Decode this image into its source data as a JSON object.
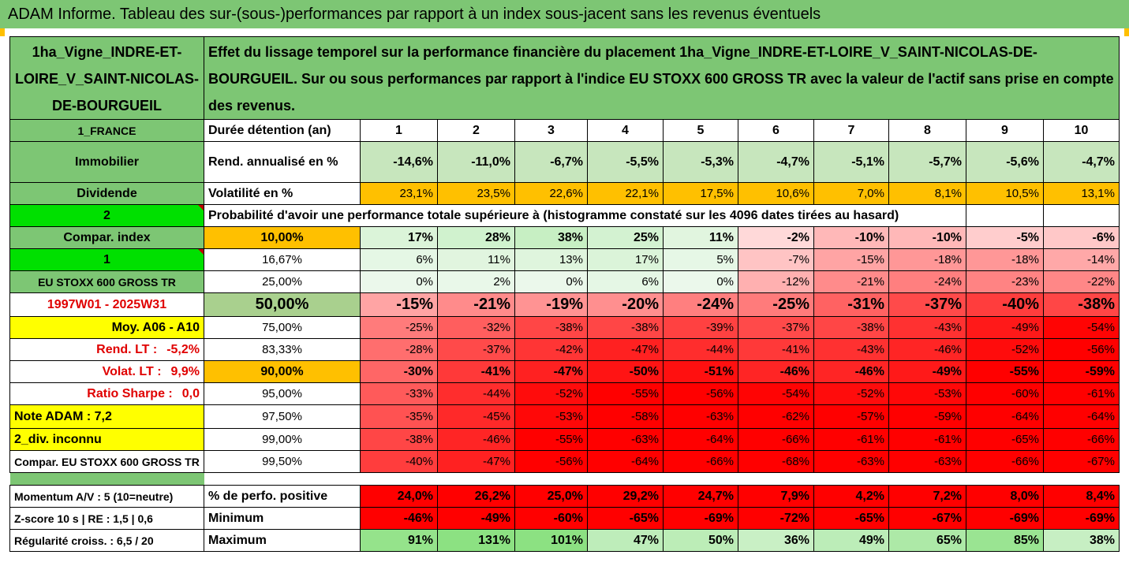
{
  "title": "ADAM Informe. Tableau des sur-(sous-)performances par rapport à un index sous-jacent sans les revenus éventuels",
  "asset_name": "1ha_Vigne_INDRE-ET-LOIRE_V_SAINT-NICOLAS-DE-BOURGUEIL",
  "description": "Effet du lissage temporel sur la performance financière du placement 1ha_Vigne_INDRE-ET-LOIRE_V_SAINT-NICOLAS-DE-BOURGUEIL. Sur ou sous performances par rapport à l'indice EU STOXX 600 GROSS TR avec la valeur de l'actif sans prise en compte des revenus.",
  "left": {
    "country": "1_FRANCE",
    "category": "Immobilier",
    "dividend": "Dividende",
    "n2": "2",
    "compar_index": "Compar. index",
    "n1": "1",
    "index_name": "EU STOXX 600 GROSS TR",
    "period": "1997W01 - 2025W31",
    "moy": "Moy. A06 - A10",
    "rend_lt_label": "Rend. LT :",
    "rend_lt_value": "-5,2%",
    "volat_lt_label": "Volat. LT :",
    "volat_lt_value": "9,9%",
    "sharpe_label": "Ratio Sharpe :",
    "sharpe_value": "0,0",
    "note": "Note ADAM : 7,2",
    "div": "2_div. inconnu",
    "compar_index2": "Compar. EU STOXX 600 GROSS TR",
    "momentum": "Momentum A/V : 5 (10=neutre)",
    "zscore": "Z-score 10 s  | RE : 1,5  | 0,6",
    "regularite": "Régularité croiss. : 6,5 / 20"
  },
  "labels": {
    "duree": "Durée détention (an)",
    "rend": "Rend. annualisé en %",
    "volat": "Volatilité en %",
    "proba": "Probabilité d'avoir une performance totale supérieure à (histogramme constaté sur les 4096 dates tirées au hasard)",
    "perf_pos": "% de perfo. positive",
    "minimum": "Minimum",
    "maximum": "Maximum"
  },
  "years": [
    "1",
    "2",
    "3",
    "4",
    "5",
    "6",
    "7",
    "8",
    "9",
    "10"
  ],
  "rend": [
    "-14,6%",
    "-11,0%",
    "-6,7%",
    "-5,5%",
    "-5,3%",
    "-4,7%",
    "-5,1%",
    "-5,7%",
    "-5,6%",
    "-4,7%"
  ],
  "volat": [
    "23,1%",
    "23,5%",
    "22,6%",
    "22,1%",
    "17,5%",
    "10,6%",
    "7,0%",
    "8,1%",
    "10,5%",
    "13,1%"
  ],
  "quantiles": [
    {
      "q": "10,00%",
      "vals": [
        "17%",
        "28%",
        "38%",
        "25%",
        "11%",
        "-2%",
        "-10%",
        "-10%",
        "-5%",
        "-6%"
      ]
    },
    {
      "q": "16,67%",
      "vals": [
        "6%",
        "11%",
        "13%",
        "17%",
        "5%",
        "-7%",
        "-15%",
        "-18%",
        "-18%",
        "-14%"
      ]
    },
    {
      "q": "25,00%",
      "vals": [
        "0%",
        "2%",
        "0%",
        "6%",
        "0%",
        "-12%",
        "-21%",
        "-24%",
        "-23%",
        "-22%"
      ]
    },
    {
      "q": "50,00%",
      "vals": [
        "-15%",
        "-21%",
        "-19%",
        "-20%",
        "-24%",
        "-25%",
        "-31%",
        "-37%",
        "-40%",
        "-38%"
      ]
    },
    {
      "q": "75,00%",
      "vals": [
        "-25%",
        "-32%",
        "-38%",
        "-38%",
        "-39%",
        "-37%",
        "-38%",
        "-43%",
        "-49%",
        "-54%"
      ]
    },
    {
      "q": "83,33%",
      "vals": [
        "-28%",
        "-37%",
        "-42%",
        "-47%",
        "-44%",
        "-41%",
        "-43%",
        "-46%",
        "-52%",
        "-56%"
      ]
    },
    {
      "q": "90,00%",
      "vals": [
        "-30%",
        "-41%",
        "-47%",
        "-50%",
        "-51%",
        "-46%",
        "-46%",
        "-49%",
        "-55%",
        "-59%"
      ]
    },
    {
      "q": "95,00%",
      "vals": [
        "-33%",
        "-44%",
        "-52%",
        "-55%",
        "-56%",
        "-54%",
        "-52%",
        "-53%",
        "-60%",
        "-61%"
      ]
    },
    {
      "q": "97,50%",
      "vals": [
        "-35%",
        "-45%",
        "-53%",
        "-58%",
        "-63%",
        "-62%",
        "-57%",
        "-59%",
        "-64%",
        "-64%"
      ]
    },
    {
      "q": "99,00%",
      "vals": [
        "-38%",
        "-46%",
        "-55%",
        "-63%",
        "-64%",
        "-66%",
        "-61%",
        "-61%",
        "-65%",
        "-66%"
      ]
    },
    {
      "q": "99,50%",
      "vals": [
        "-40%",
        "-47%",
        "-56%",
        "-64%",
        "-66%",
        "-68%",
        "-63%",
        "-63%",
        "-66%",
        "-67%"
      ]
    }
  ],
  "perf_pos": [
    "24,0%",
    "26,2%",
    "25,0%",
    "29,2%",
    "24,7%",
    "7,9%",
    "4,2%",
    "7,2%",
    "8,0%",
    "8,4%"
  ],
  "minimum": [
    "-46%",
    "-49%",
    "-60%",
    "-65%",
    "-69%",
    "-72%",
    "-65%",
    "-67%",
    "-69%",
    "-69%"
  ],
  "maximum": [
    "91%",
    "131%",
    "101%",
    "47%",
    "50%",
    "36%",
    "49%",
    "65%",
    "85%",
    "38%"
  ],
  "colors": {
    "green_header": "#7dc674",
    "orange": "#ffc000",
    "yellow": "#ffff00",
    "bright_green": "#00e000",
    "red": "#ff0000"
  }
}
